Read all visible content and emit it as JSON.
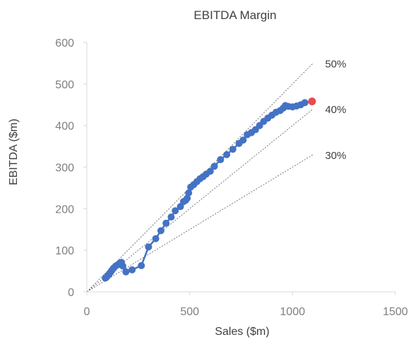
{
  "chart_data": {
    "type": "scatter",
    "title": "EBITDA Margin",
    "xlabel": "Sales ($m)",
    "ylabel": "EBITDA ($m)",
    "xlim": [
      0,
      1500
    ],
    "ylim": [
      0,
      600
    ],
    "x_ticks": [
      0,
      500,
      1000,
      1500
    ],
    "y_ticks": [
      0,
      100,
      200,
      300,
      400,
      500,
      600
    ],
    "grid": false,
    "legend": "none",
    "colors": {
      "series": "#4472c4",
      "latest_point": "#e84c4c",
      "reference_lines": "#595959",
      "axis_text": "#7f7f7f",
      "title_text": "#404040"
    },
    "reference_lines": [
      {
        "label": "50%",
        "margin": 0.5,
        "x_end": 1100
      },
      {
        "label": "40%",
        "margin": 0.4,
        "x_end": 1100
      },
      {
        "label": "30%",
        "margin": 0.3,
        "x_end": 1100
      }
    ],
    "series": [
      {
        "points": [
          [
            90,
            33
          ],
          [
            95,
            35
          ],
          [
            100,
            38
          ],
          [
            108,
            42
          ],
          [
            115,
            47
          ],
          [
            122,
            52
          ],
          [
            130,
            57
          ],
          [
            140,
            62
          ],
          [
            150,
            65
          ],
          [
            160,
            69
          ],
          [
            168,
            71
          ],
          [
            175,
            62
          ],
          [
            190,
            48
          ],
          [
            220,
            53
          ],
          [
            265,
            63
          ],
          [
            300,
            108
          ],
          [
            335,
            128
          ],
          [
            360,
            147
          ],
          [
            385,
            165
          ],
          [
            410,
            180
          ],
          [
            430,
            195
          ],
          [
            455,
            205
          ],
          [
            470,
            217
          ],
          [
            480,
            220
          ],
          [
            488,
            225
          ],
          [
            495,
            238
          ],
          [
            505,
            252
          ],
          [
            520,
            258
          ],
          [
            535,
            265
          ],
          [
            550,
            272
          ],
          [
            565,
            277
          ],
          [
            580,
            283
          ],
          [
            600,
            290
          ],
          [
            620,
            302
          ],
          [
            650,
            318
          ],
          [
            680,
            330
          ],
          [
            710,
            343
          ],
          [
            740,
            357
          ],
          [
            760,
            365
          ],
          [
            780,
            378
          ],
          [
            800,
            383
          ],
          [
            820,
            390
          ],
          [
            840,
            400
          ],
          [
            860,
            410
          ],
          [
            880,
            418
          ],
          [
            900,
            425
          ],
          [
            920,
            432
          ],
          [
            940,
            436
          ],
          [
            955,
            442
          ],
          [
            965,
            448
          ],
          [
            980,
            446
          ],
          [
            1000,
            445
          ],
          [
            1020,
            447
          ],
          [
            1040,
            450
          ],
          [
            1060,
            455
          ]
        ]
      }
    ],
    "latest_point": [
      1095,
      458
    ]
  }
}
